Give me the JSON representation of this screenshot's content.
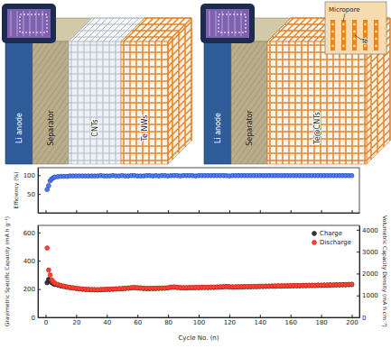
{
  "chart_data": [
    {
      "type": "scatter",
      "ylabel": "Efficiency (%)",
      "x": [
        1,
        2,
        3,
        4,
        5,
        6,
        8,
        10,
        12,
        14,
        16,
        18,
        20,
        22,
        24,
        26,
        28,
        30,
        32,
        34,
        36,
        38,
        40,
        42,
        44,
        46,
        48,
        50,
        52,
        54,
        56,
        58,
        60,
        62,
        64,
        66,
        68,
        70,
        72,
        74,
        76,
        78,
        80,
        82,
        84,
        86,
        88,
        90,
        92,
        94,
        96,
        98,
        100,
        102,
        104,
        106,
        108,
        110,
        112,
        114,
        116,
        118,
        120,
        122,
        124,
        126,
        128,
        130,
        132,
        134,
        136,
        138,
        140,
        142,
        144,
        146,
        148,
        150,
        152,
        154,
        156,
        158,
        160,
        162,
        164,
        166,
        168,
        170,
        172,
        174,
        176,
        178,
        180,
        182,
        184,
        186,
        188,
        190,
        192,
        194,
        196,
        198,
        200
      ],
      "xlim": [
        -5,
        205
      ],
      "xticks": [
        0,
        20,
        40,
        60,
        80,
        100,
        120,
        140,
        160,
        180,
        200
      ],
      "ylim": [
        0,
        120
      ],
      "yticks": [
        50,
        100
      ],
      "tick_labels": "y",
      "series": [
        {
          "color": "#2f4fb0",
          "marker": "circle",
          "values": [
            62,
            72,
            85,
            90,
            93,
            95,
            96,
            97,
            97,
            97,
            98,
            98,
            98,
            98,
            98,
            98,
            98,
            98,
            98,
            98,
            99,
            98,
            98,
            98,
            99,
            98,
            98,
            99,
            98,
            98,
            99,
            99,
            98,
            98,
            98,
            99,
            99,
            98,
            99,
            98,
            99,
            99,
            98,
            99,
            99,
            99,
            98,
            99,
            99,
            99,
            99,
            98,
            99,
            99,
            99,
            99,
            99,
            99,
            99,
            99,
            99,
            99,
            98,
            99,
            99,
            99,
            99,
            99,
            99,
            99,
            99,
            99,
            99,
            99,
            99,
            99,
            99,
            99,
            99,
            99,
            99,
            99,
            99,
            99,
            99,
            99,
            99,
            99,
            99,
            99,
            99,
            99,
            99,
            99,
            99,
            99,
            99,
            99,
            99,
            99,
            99,
            99,
            99
          ]
        }
      ]
    },
    {
      "type": "scatter",
      "xlabel": "Cycle No. (n)",
      "ylabel": "Gravimetric Specific Capacity (mA h g⁻¹)",
      "y2label": "Volumetric Capacity Density (mA h cm⁻³)",
      "x": [
        1,
        2,
        3,
        4,
        5,
        6,
        8,
        10,
        12,
        14,
        16,
        18,
        20,
        22,
        24,
        26,
        28,
        30,
        32,
        34,
        36,
        38,
        40,
        42,
        44,
        46,
        48,
        50,
        52,
        54,
        56,
        58,
        60,
        62,
        64,
        66,
        68,
        70,
        72,
        74,
        76,
        78,
        80,
        82,
        84,
        86,
        88,
        90,
        92,
        94,
        96,
        98,
        100,
        102,
        104,
        106,
        108,
        110,
        112,
        114,
        116,
        118,
        120,
        122,
        124,
        126,
        128,
        130,
        132,
        134,
        136,
        138,
        140,
        142,
        144,
        146,
        148,
        150,
        152,
        154,
        156,
        158,
        160,
        162,
        164,
        166,
        168,
        170,
        172,
        174,
        176,
        178,
        180,
        182,
        184,
        186,
        188,
        190,
        192,
        194,
        196,
        198,
        200
      ],
      "xlim": [
        -5,
        205
      ],
      "xticks": [
        0,
        20,
        40,
        60,
        80,
        100,
        120,
        140,
        160,
        180,
        200
      ],
      "ylim": [
        0,
        650
      ],
      "yticks": [
        0,
        200,
        400,
        600
      ],
      "y2lim": [
        0,
        4200
      ],
      "y2ticks": [
        0,
        1000,
        2000,
        3000,
        4000
      ],
      "legend": "top-right",
      "series": [
        {
          "name": "Charge",
          "color": "#222222",
          "marker": "circle",
          "values": [
            245,
            268,
            262,
            245,
            238,
            233,
            228,
            222,
            218,
            213,
            210,
            207,
            204,
            201,
            199,
            197,
            196,
            195,
            194,
            194,
            195,
            196,
            197,
            198,
            199,
            200,
            201,
            202,
            204,
            206,
            208,
            210,
            208,
            206,
            204,
            203,
            203,
            204,
            204,
            205,
            205,
            206,
            208,
            212,
            213,
            211,
            209,
            208,
            208,
            209,
            209,
            210,
            210,
            211,
            211,
            211,
            212,
            212,
            213,
            214,
            215,
            217,
            215,
            214,
            214,
            215,
            215,
            216,
            216,
            216,
            217,
            217,
            218,
            218,
            219,
            219,
            220,
            220,
            221,
            221,
            221,
            222,
            222,
            223,
            223,
            223,
            224,
            224,
            225,
            225,
            225,
            226,
            226,
            227,
            227,
            228,
            228,
            229,
            229,
            230,
            230,
            231,
            232
          ]
        },
        {
          "name": "Discharge",
          "color": "#d42a20",
          "marker": "circle",
          "values": [
            490,
            335,
            300,
            265,
            250,
            242,
            233,
            226,
            221,
            216,
            212,
            209,
            206,
            203,
            201,
            199,
            198,
            197,
            196,
            196,
            197,
            198,
            199,
            200,
            201,
            202,
            203,
            204,
            206,
            208,
            210,
            212,
            210,
            208,
            206,
            205,
            205,
            206,
            206,
            207,
            207,
            208,
            210,
            214,
            215,
            213,
            211,
            210,
            210,
            211,
            211,
            212,
            212,
            213,
            213,
            213,
            214,
            214,
            215,
            216,
            217,
            219,
            217,
            216,
            216,
            217,
            217,
            218,
            218,
            218,
            219,
            219,
            220,
            220,
            221,
            221,
            222,
            222,
            223,
            223,
            223,
            224,
            224,
            225,
            225,
            225,
            226,
            226,
            227,
            227,
            227,
            228,
            228,
            229,
            229,
            230,
            230,
            231,
            231,
            232,
            232,
            233,
            234
          ]
        }
      ]
    }
  ],
  "diagram": {
    "panels": [
      {
        "layers": [
          "Li anode",
          "Separator",
          "CNTs",
          "Te NWs"
        ]
      },
      {
        "layers": [
          "Li anode",
          "Separator",
          "Te@CNTs"
        ],
        "inset": [
          "Micropore",
          "Te"
        ]
      }
    ]
  }
}
